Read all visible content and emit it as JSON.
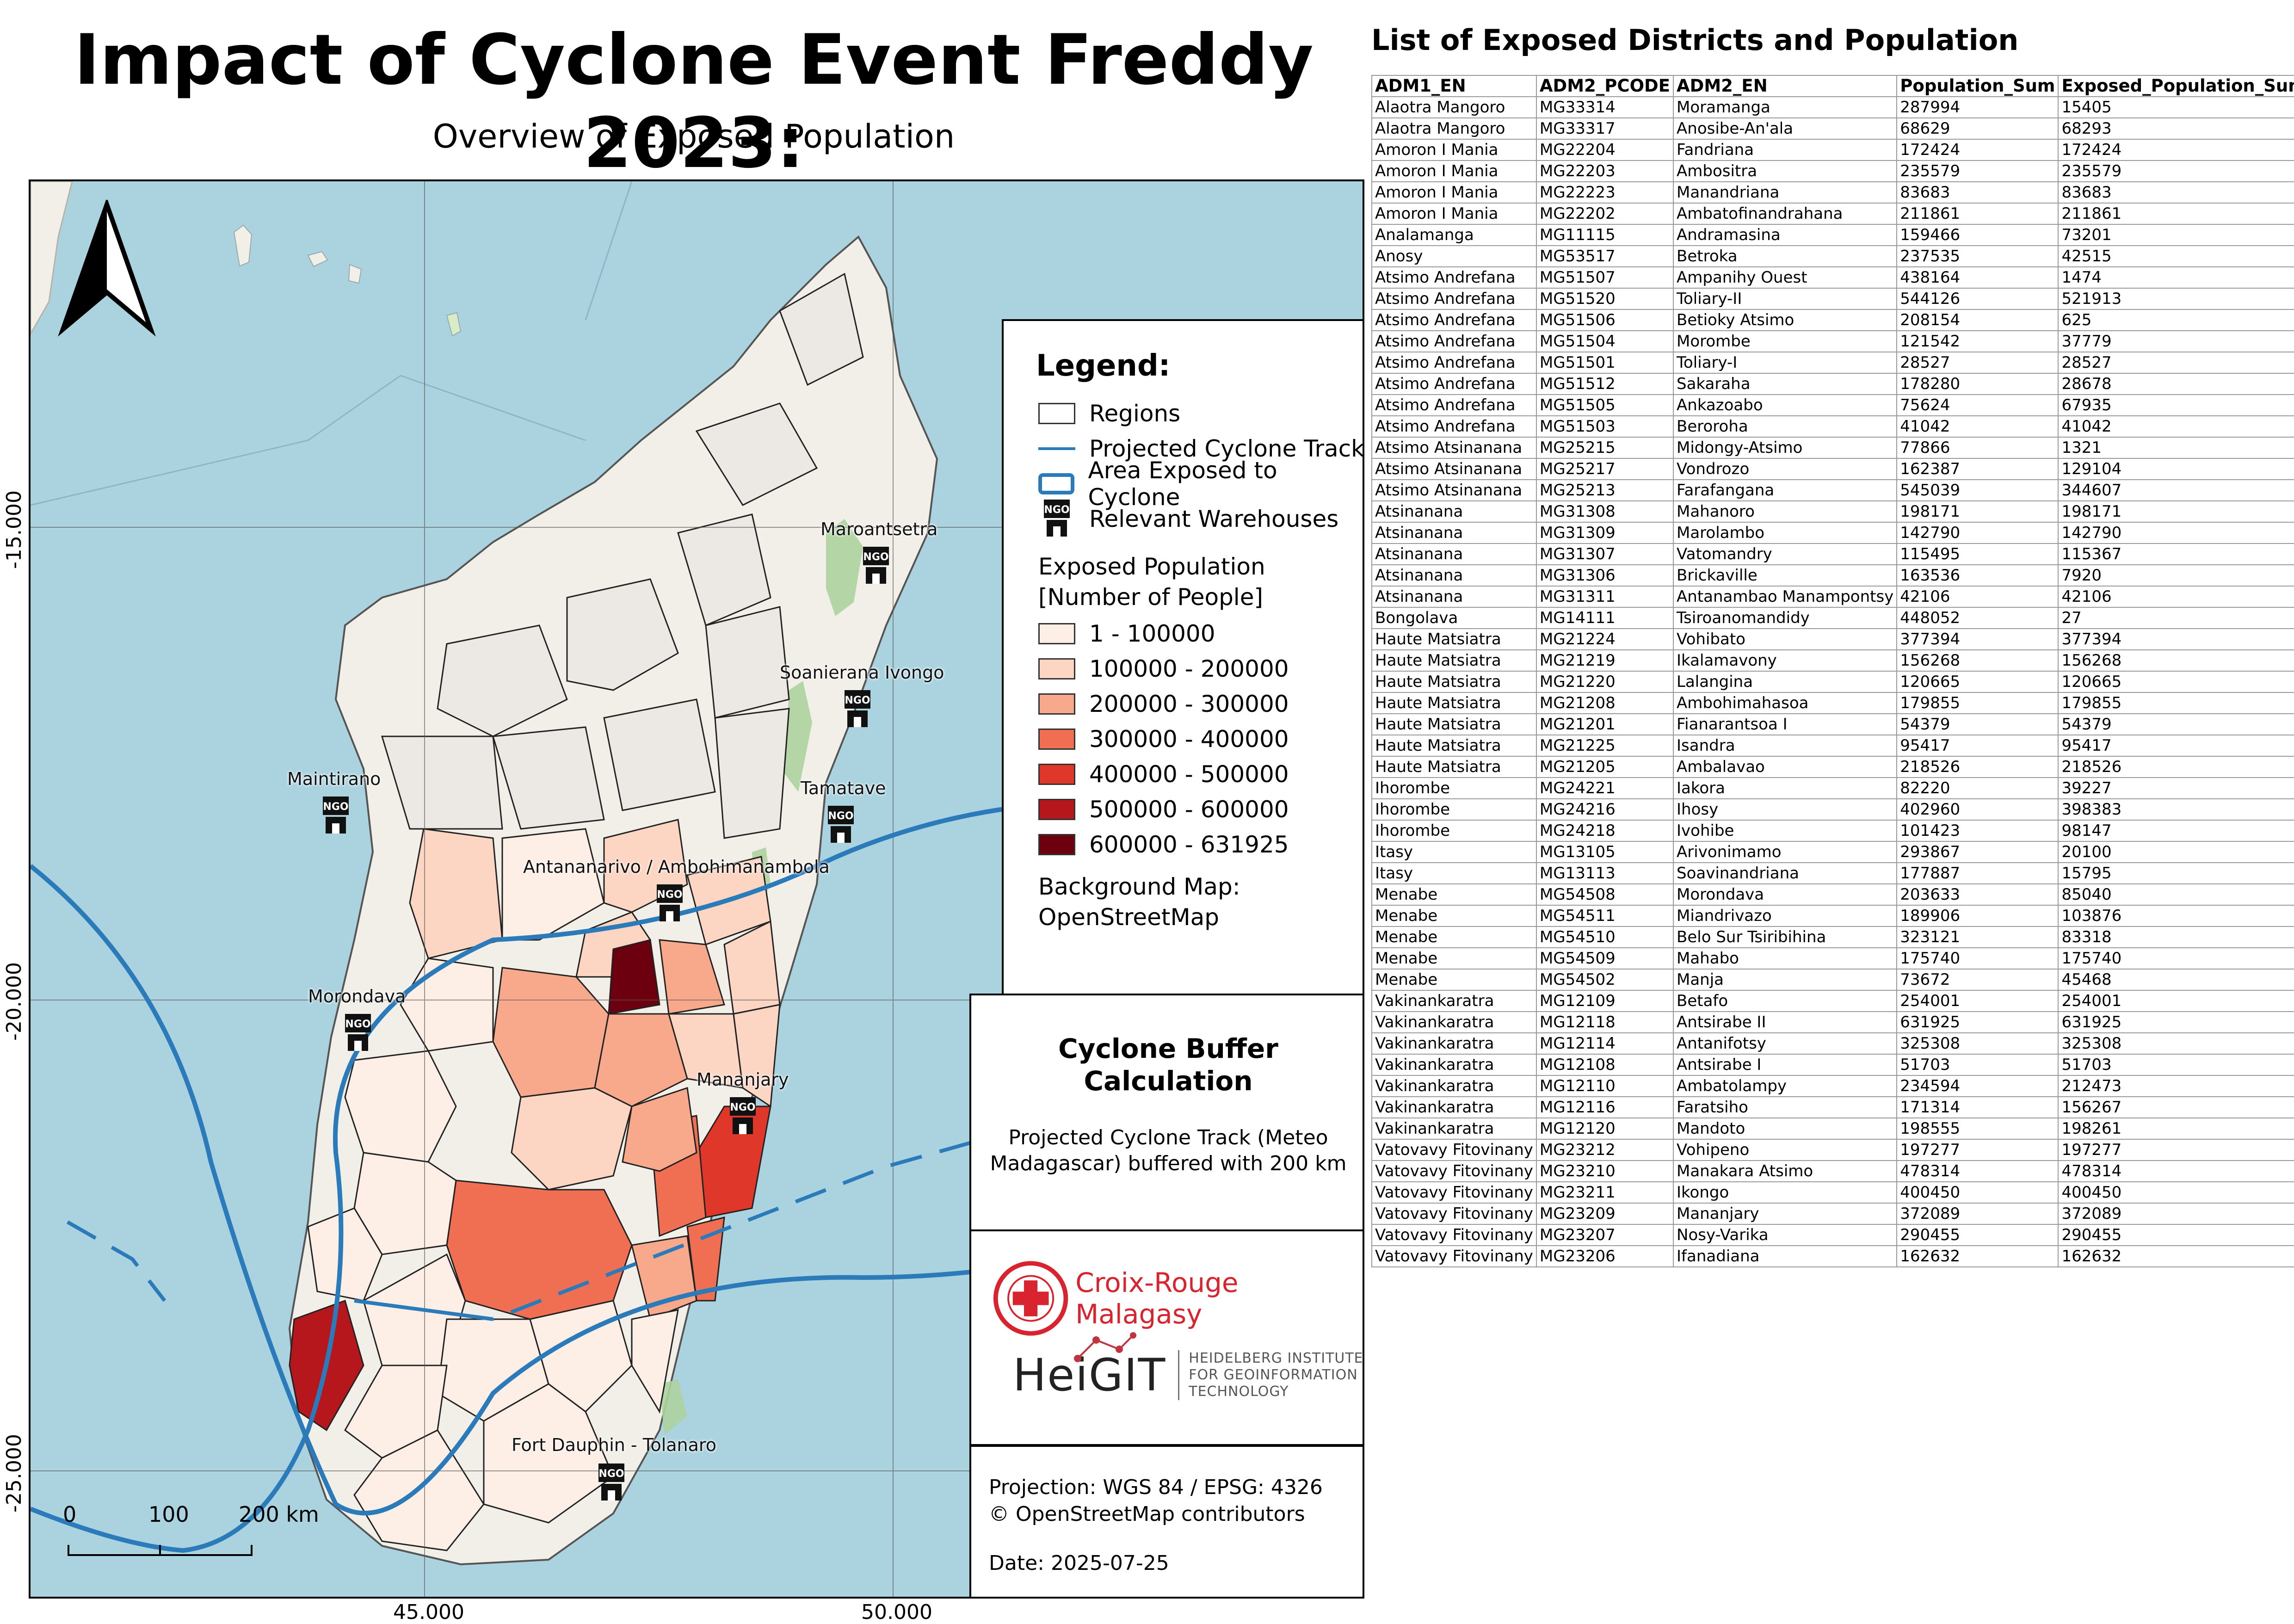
{
  "title": "Impact of Cyclone Event Freddy 2023:",
  "subtitle": "Overview of Exposed Population",
  "map": {
    "lat_labels": [
      "-15.000",
      "-20.000",
      "-25.000"
    ],
    "lon_labels": [
      "45.000",
      "50.000"
    ],
    "warehouses": [
      "Maroantsetra",
      "Soanierana Ivongo",
      "Maintirano",
      "Tamatave",
      "Antananarivo / Ambohimanambola",
      "Morondava",
      "Mananjary",
      "Fort Dauphin - Tolanaro"
    ],
    "ngo_text": "NGO",
    "scale": {
      "labels": [
        "0",
        "100",
        "200 km"
      ]
    },
    "north_arrow": "north-arrow-icon"
  },
  "legend": {
    "title": "Legend:",
    "items": [
      {
        "label": "Regions",
        "symbol": "outline"
      },
      {
        "label": "Projected Cyclone Track",
        "symbol": "line",
        "color": "#2b7bba"
      },
      {
        "label": "Area Exposed to Cyclone",
        "symbol": "outline-blue",
        "color": "#2b7bba"
      },
      {
        "label": "Relevant Warehouses",
        "symbol": "ngo-icon"
      }
    ],
    "population_heading": [
      "Exposed Population",
      "[Number of People]"
    ],
    "classes": [
      {
        "label": "1 - 100000",
        "color": "#fdeee6"
      },
      {
        "label": "100000 - 200000",
        "color": "#fcd5c3"
      },
      {
        "label": "200000 - 300000",
        "color": "#f9a98b"
      },
      {
        "label": "300000 - 400000",
        "color": "#f06e52"
      },
      {
        "label": "400000 - 500000",
        "color": "#e0372b"
      },
      {
        "label": "500000 - 600000",
        "color": "#b5171d"
      },
      {
        "label": "600000 - 631925",
        "color": "#6d000f"
      }
    ],
    "background": [
      "Background Map:",
      "OpenStreetMap"
    ]
  },
  "buffer": {
    "title": [
      "Cyclone Buffer",
      "Calculation"
    ],
    "text": [
      "Projected Cyclone Track (Meteo",
      "Madagascar) buffered with 200 km"
    ]
  },
  "logos": {
    "croix_rouge": "Croix-Rouge Malagasy",
    "croix_rouge_seal": "CROIX-ROUGE MALAGASY",
    "heigit": "HeiGIT",
    "heigit_sub": [
      "HEIDELBERG INSTITUTE",
      "FOR GEOINFORMATION",
      "TECHNOLOGY"
    ]
  },
  "info": {
    "projection": "Projection: WGS 84 / EPSG: 4326",
    "copyright": "© OpenStreetMap contributors",
    "date": "Date: 2025-07-25"
  },
  "table": {
    "title": "List of Exposed Districts and Population",
    "headers": [
      "ADM1_EN",
      "ADM2_PCODE",
      "ADM2_EN",
      "Population_Sum",
      "Exposed_Population_Sum"
    ],
    "rows": [
      [
        "Alaotra Mangoro",
        "MG33314",
        "Moramanga",
        "287994",
        "15405"
      ],
      [
        "Alaotra Mangoro",
        "MG33317",
        "Anosibe-An'ala",
        "68629",
        "68293"
      ],
      [
        "Amoron I Mania",
        "MG22204",
        "Fandriana",
        "172424",
        "172424"
      ],
      [
        "Amoron I Mania",
        "MG22203",
        "Ambositra",
        "235579",
        "235579"
      ],
      [
        "Amoron I Mania",
        "MG22223",
        "Manandriana",
        "83683",
        "83683"
      ],
      [
        "Amoron I Mania",
        "MG22202",
        "Ambatofinandrahana",
        "211861",
        "211861"
      ],
      [
        "Analamanga",
        "MG11115",
        "Andramasina",
        "159466",
        "73201"
      ],
      [
        "Anosy",
        "MG53517",
        "Betroka",
        "237535",
        "42515"
      ],
      [
        "Atsimo Andrefana",
        "MG51507",
        "Ampanihy Ouest",
        "438164",
        "1474"
      ],
      [
        "Atsimo Andrefana",
        "MG51520",
        "Toliary-II",
        "544126",
        "521913"
      ],
      [
        "Atsimo Andrefana",
        "MG51506",
        "Betioky Atsimo",
        "208154",
        "625"
      ],
      [
        "Atsimo Andrefana",
        "MG51504",
        "Morombe",
        "121542",
        "37779"
      ],
      [
        "Atsimo Andrefana",
        "MG51501",
        "Toliary-I",
        "28527",
        "28527"
      ],
      [
        "Atsimo Andrefana",
        "MG51512",
        "Sakaraha",
        "178280",
        "28678"
      ],
      [
        "Atsimo Andrefana",
        "MG51505",
        "Ankazoabo",
        "75624",
        "67935"
      ],
      [
        "Atsimo Andrefana",
        "MG51503",
        "Beroroha",
        "41042",
        "41042"
      ],
      [
        "Atsimo Atsinanana",
        "MG25215",
        "Midongy-Atsimo",
        "77866",
        "1321"
      ],
      [
        "Atsimo Atsinanana",
        "MG25217",
        "Vondrozo",
        "162387",
        "129104"
      ],
      [
        "Atsimo Atsinanana",
        "MG25213",
        "Farafangana",
        "545039",
        "344607"
      ],
      [
        "Atsinanana",
        "MG31308",
        "Mahanoro",
        "198171",
        "198171"
      ],
      [
        "Atsinanana",
        "MG31309",
        "Marolambo",
        "142790",
        "142790"
      ],
      [
        "Atsinanana",
        "MG31307",
        "Vatomandry",
        "115495",
        "115367"
      ],
      [
        "Atsinanana",
        "MG31306",
        "Brickaville",
        "163536",
        "7920"
      ],
      [
        "Atsinanana",
        "MG31311",
        "Antanambao Manampontsy",
        "42106",
        "42106"
      ],
      [
        "Bongolava",
        "MG14111",
        "Tsiroanomandidy",
        "448052",
        "27"
      ],
      [
        "Haute Matsiatra",
        "MG21224",
        "Vohibato",
        "377394",
        "377394"
      ],
      [
        "Haute Matsiatra",
        "MG21219",
        "Ikalamavony",
        "156268",
        "156268"
      ],
      [
        "Haute Matsiatra",
        "MG21220",
        "Lalangina",
        "120665",
        "120665"
      ],
      [
        "Haute Matsiatra",
        "MG21208",
        "Ambohimahasoa",
        "179855",
        "179855"
      ],
      [
        "Haute Matsiatra",
        "MG21201",
        "Fianarantsoa I",
        "54379",
        "54379"
      ],
      [
        "Haute Matsiatra",
        "MG21225",
        "Isandra",
        "95417",
        "95417"
      ],
      [
        "Haute Matsiatra",
        "MG21205",
        "Ambalavao",
        "218526",
        "218526"
      ],
      [
        "Ihorombe",
        "MG24221",
        "Iakora",
        "82220",
        "39227"
      ],
      [
        "Ihorombe",
        "MG24216",
        "Ihosy",
        "402960",
        "398383"
      ],
      [
        "Ihorombe",
        "MG24218",
        "Ivohibe",
        "101423",
        "98147"
      ],
      [
        "Itasy",
        "MG13105",
        "Arivonimamo",
        "293867",
        "20100"
      ],
      [
        "Itasy",
        "MG13113",
        "Soavinandriana",
        "177887",
        "15795"
      ],
      [
        "Menabe",
        "MG54508",
        "Morondava",
        "203633",
        "85040"
      ],
      [
        "Menabe",
        "MG54511",
        "Miandrivazo",
        "189906",
        "103876"
      ],
      [
        "Menabe",
        "MG54510",
        "Belo Sur Tsiribihina",
        "323121",
        "83318"
      ],
      [
        "Menabe",
        "MG54509",
        "Mahabo",
        "175740",
        "175740"
      ],
      [
        "Menabe",
        "MG54502",
        "Manja",
        "73672",
        "45468"
      ],
      [
        "Vakinankaratra",
        "MG12109",
        "Betafo",
        "254001",
        "254001"
      ],
      [
        "Vakinankaratra",
        "MG12118",
        "Antsirabe II",
        "631925",
        "631925"
      ],
      [
        "Vakinankaratra",
        "MG12114",
        "Antanifotsy",
        "325308",
        "325308"
      ],
      [
        "Vakinankaratra",
        "MG12108",
        "Antsirabe I",
        "51703",
        "51703"
      ],
      [
        "Vakinankaratra",
        "MG12110",
        "Ambatolampy",
        "234594",
        "212473"
      ],
      [
        "Vakinankaratra",
        "MG12116",
        "Faratsiho",
        "171314",
        "156267"
      ],
      [
        "Vakinankaratra",
        "MG12120",
        "Mandoto",
        "198555",
        "198261"
      ],
      [
        "Vatovavy Fitovinany",
        "MG23212",
        "Vohipeno",
        "197277",
        "197277"
      ],
      [
        "Vatovavy Fitovinany",
        "MG23210",
        "Manakara Atsimo",
        "478314",
        "478314"
      ],
      [
        "Vatovavy Fitovinany",
        "MG23211",
        "Ikongo",
        "400450",
        "400450"
      ],
      [
        "Vatovavy Fitovinany",
        "MG23209",
        "Mananjary",
        "372089",
        "372089"
      ],
      [
        "Vatovavy Fitovinany",
        "MG23207",
        "Nosy-Varika",
        "290455",
        "290455"
      ],
      [
        "Vatovavy Fitovinany",
        "MG23206",
        "Ifanadiana",
        "162632",
        "162632"
      ]
    ]
  }
}
